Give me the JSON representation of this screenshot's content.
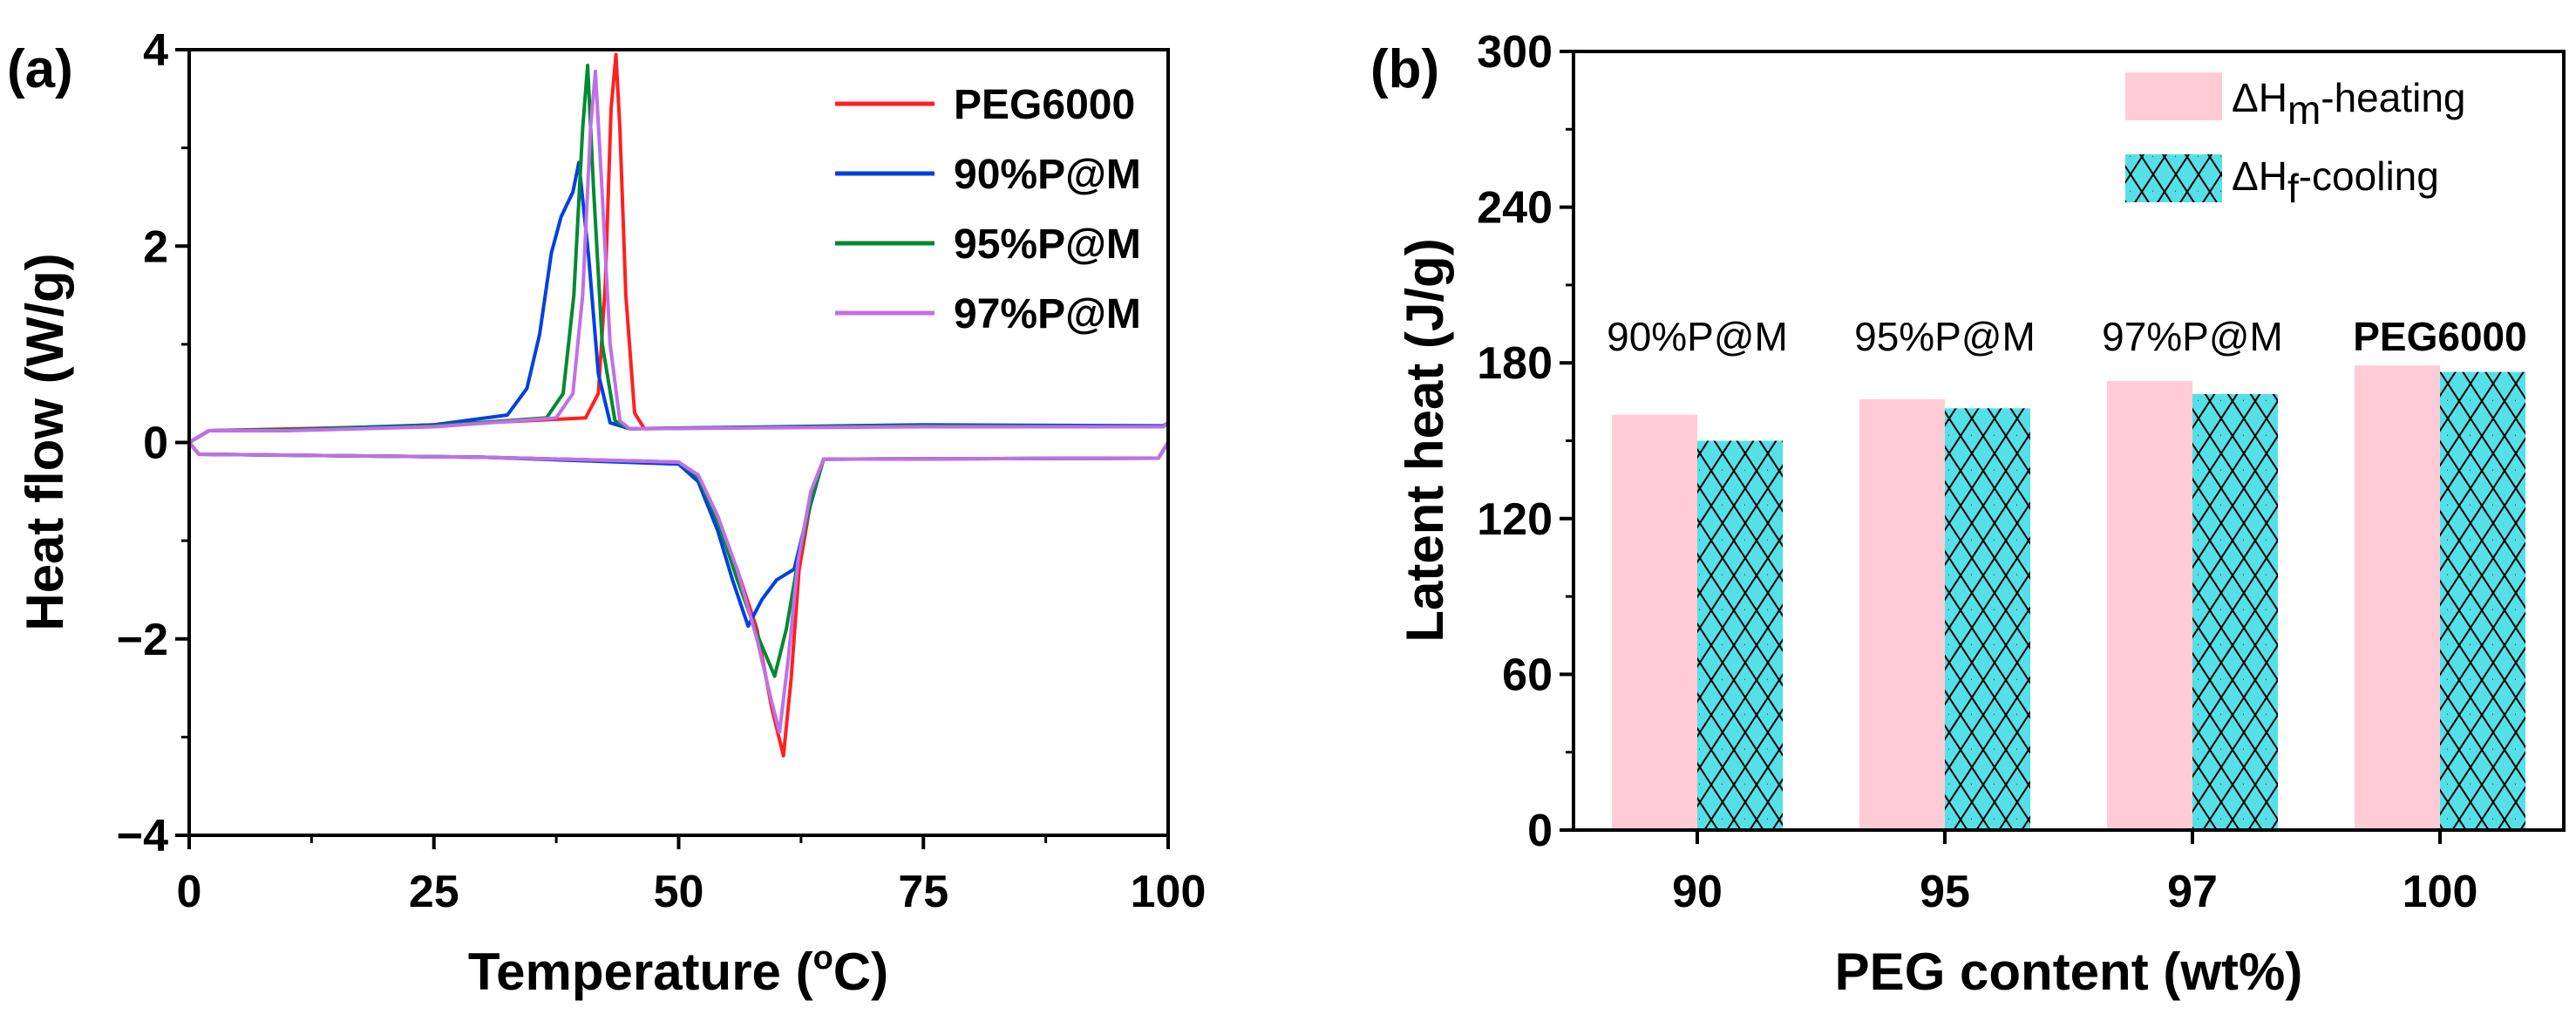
{
  "chart_data": [
    {
      "type": "line",
      "panel_label": "(a)",
      "xlabel_prefix": "Temperature (",
      "xlabel_sup": "o",
      "xlabel_suffix": "C)",
      "ylabel": "Heat flow (W/g)",
      "xlim": [
        0,
        100
      ],
      "ylim": [
        -4,
        4
      ],
      "xticks": [
        "0",
        "25",
        "50",
        "75",
        "100"
      ],
      "yticks": [
        "−4",
        "−2",
        "0",
        "2",
        "4"
      ],
      "legend_position": "top-right",
      "series": [
        {
          "name": "PEG6000",
          "color": "#FF2020",
          "points": [
            [
              100,
              0.2
            ],
            [
              99.5,
              0.16
            ],
            [
              75,
              0.17
            ],
            [
              46.5,
              0.14
            ],
            [
              45.5,
              0.3
            ],
            [
              44.6,
              1.5
            ],
            [
              44,
              3.2
            ],
            [
              43.6,
              3.95
            ],
            [
              43.1,
              3.4
            ],
            [
              42.5,
              1.6
            ],
            [
              41.8,
              0.5
            ],
            [
              40.5,
              0.25
            ],
            [
              30,
              0.2
            ],
            [
              20,
              0.16
            ],
            [
              2,
              0.12
            ],
            [
              0,
              0
            ],
            [
              1,
              -0.12
            ],
            [
              30,
              -0.15
            ],
            [
              50,
              -0.2
            ],
            [
              52,
              -0.35
            ],
            [
              54,
              -0.8
            ],
            [
              56,
              -1.3
            ],
            [
              58,
              -1.9
            ],
            [
              59.5,
              -2.7
            ],
            [
              60.7,
              -3.19
            ],
            [
              61.5,
              -2.4
            ],
            [
              62.3,
              -1.3
            ],
            [
              63.5,
              -0.6
            ],
            [
              64.8,
              -0.17
            ],
            [
              99,
              -0.16
            ],
            [
              100,
              0
            ]
          ]
        },
        {
          "name": "90%P@M",
          "color": "#0040E0",
          "points": [
            [
              100,
              0.2
            ],
            [
              99.5,
              0.17
            ],
            [
              75,
              0.18
            ],
            [
              45,
              0.14
            ],
            [
              43,
              0.2
            ],
            [
              41.8,
              0.7
            ],
            [
              40.8,
              1.9
            ],
            [
              39.8,
              2.85
            ],
            [
              39.2,
              2.55
            ],
            [
              38,
              2.3
            ],
            [
              37,
              1.93
            ],
            [
              35.8,
              1.1
            ],
            [
              34.5,
              0.55
            ],
            [
              32.5,
              0.28
            ],
            [
              25,
              0.18
            ],
            [
              10,
              0.13
            ],
            [
              2,
              0.12
            ],
            [
              0,
              0
            ],
            [
              1,
              -0.12
            ],
            [
              30,
              -0.15
            ],
            [
              50,
              -0.22
            ],
            [
              52,
              -0.4
            ],
            [
              54,
              -0.9
            ],
            [
              55.5,
              -1.4
            ],
            [
              57.1,
              -1.87
            ],
            [
              58.5,
              -1.6
            ],
            [
              60,
              -1.4
            ],
            [
              61.8,
              -1.29
            ],
            [
              63,
              -0.8
            ],
            [
              64.8,
              -0.17
            ],
            [
              99,
              -0.16
            ],
            [
              100,
              0
            ]
          ]
        },
        {
          "name": "95%P@M",
          "color": "#008A30",
          "points": [
            [
              100,
              0.2
            ],
            [
              99.5,
              0.16
            ],
            [
              75,
              0.17
            ],
            [
              45,
              0.14
            ],
            [
              43.5,
              0.22
            ],
            [
              42.2,
              1.0
            ],
            [
              41.3,
              2.6
            ],
            [
              40.7,
              3.84
            ],
            [
              40.2,
              3.2
            ],
            [
              39.3,
              1.5
            ],
            [
              38.2,
              0.5
            ],
            [
              36.5,
              0.25
            ],
            [
              25,
              0.17
            ],
            [
              10,
              0.13
            ],
            [
              2,
              0.12
            ],
            [
              0,
              0
            ],
            [
              1,
              -0.12
            ],
            [
              30,
              -0.15
            ],
            [
              50,
              -0.2
            ],
            [
              52,
              -0.35
            ],
            [
              54,
              -0.8
            ],
            [
              56,
              -1.4
            ],
            [
              58,
              -1.95
            ],
            [
              59.8,
              -2.38
            ],
            [
              61,
              -1.9
            ],
            [
              62.2,
              -1.2
            ],
            [
              63.5,
              -0.6
            ],
            [
              64.8,
              -0.17
            ],
            [
              99,
              -0.16
            ],
            [
              100,
              0
            ]
          ]
        },
        {
          "name": "97%P@M",
          "color": "#C070E8",
          "points": [
            [
              100,
              0.2
            ],
            [
              99.5,
              0.16
            ],
            [
              75,
              0.16
            ],
            [
              45,
              0.14
            ],
            [
              44,
              0.22
            ],
            [
              43,
              1.0
            ],
            [
              42.1,
              2.7
            ],
            [
              41.5,
              3.78
            ],
            [
              41,
              3.2
            ],
            [
              40.2,
              1.5
            ],
            [
              39.2,
              0.5
            ],
            [
              37.5,
              0.25
            ],
            [
              25,
              0.16
            ],
            [
              10,
              0.12
            ],
            [
              2,
              0.12
            ],
            [
              0,
              0
            ],
            [
              1,
              -0.12
            ],
            [
              30,
              -0.15
            ],
            [
              50,
              -0.2
            ],
            [
              52,
              -0.33
            ],
            [
              54,
              -0.75
            ],
            [
              56,
              -1.3
            ],
            [
              58,
              -2.0
            ],
            [
              59.4,
              -2.6
            ],
            [
              60.3,
              -2.95
            ],
            [
              61.2,
              -2.2
            ],
            [
              62.2,
              -1.2
            ],
            [
              63.5,
              -0.5
            ],
            [
              64.8,
              -0.17
            ],
            [
              99,
              -0.16
            ],
            [
              100,
              0
            ]
          ]
        }
      ]
    },
    {
      "type": "bar",
      "panel_label": "(b)",
      "xlabel": "PEG content (wt%)",
      "ylabel": "Latent heat (J/g)",
      "ylim": [
        0,
        300
      ],
      "yticks": [
        "0",
        "60",
        "120",
        "180",
        "240",
        "300"
      ],
      "categories": [
        "90",
        "95",
        "97",
        "100"
      ],
      "category_annotations": [
        "90%P@M",
        "95%P@M",
        "97%P@M",
        "PEG6000"
      ],
      "legend_position": "top-right",
      "series": [
        {
          "name_main": "ΔH",
          "name_sub": "m",
          "name_suffix": "-heating",
          "color": "#FFCCD5",
          "values": [
            160,
            166,
            173,
            179
          ]
        },
        {
          "name_main": "ΔH",
          "name_sub": "f",
          "name_suffix": "-cooling",
          "color": "#55E0E8",
          "hatch": "crosshatch",
          "values": [
            150,
            162.5,
            168,
            176.5
          ]
        }
      ]
    }
  ]
}
